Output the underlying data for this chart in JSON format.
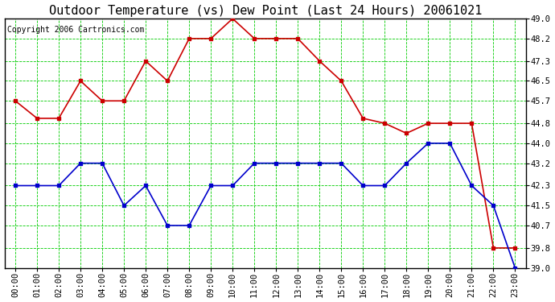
{
  "title": "Outdoor Temperature (vs) Dew Point (Last 24 Hours) 20061021",
  "copyright": "Copyright 2006 Cartronics.com",
  "x_labels": [
    "00:00",
    "01:00",
    "02:00",
    "03:00",
    "04:00",
    "05:00",
    "06:00",
    "07:00",
    "08:00",
    "09:00",
    "10:00",
    "11:00",
    "12:00",
    "13:00",
    "14:00",
    "15:00",
    "16:00",
    "17:00",
    "18:00",
    "19:00",
    "20:00",
    "21:00",
    "22:00",
    "23:00"
  ],
  "y_ticks": [
    39.0,
    39.8,
    40.7,
    41.5,
    42.3,
    43.2,
    44.0,
    44.8,
    45.7,
    46.5,
    47.3,
    48.2,
    49.0
  ],
  "ylim": [
    39.0,
    49.0
  ],
  "red_data": [
    45.7,
    45.0,
    45.0,
    46.5,
    45.7,
    45.7,
    47.3,
    46.5,
    48.2,
    48.2,
    49.0,
    48.2,
    48.2,
    48.2,
    47.3,
    46.5,
    45.0,
    44.8,
    44.4,
    44.8,
    44.8,
    44.8,
    39.8,
    39.8
  ],
  "blue_data": [
    42.3,
    42.3,
    42.3,
    43.2,
    43.2,
    41.5,
    42.3,
    40.7,
    40.7,
    42.3,
    42.3,
    43.2,
    43.2,
    43.2,
    43.2,
    43.2,
    42.3,
    42.3,
    43.2,
    44.0,
    44.0,
    42.3,
    41.5,
    39.0
  ],
  "red_color": "#cc0000",
  "blue_color": "#0000cc",
  "grid_color": "#00cc00",
  "bg_color": "#ffffff",
  "title_color": "#000000",
  "copyright_color": "#000000",
  "title_fontsize": 11,
  "copyright_fontsize": 7,
  "tick_fontsize": 7.5,
  "marker": "s",
  "marker_size": 2.5,
  "line_width": 1.2
}
